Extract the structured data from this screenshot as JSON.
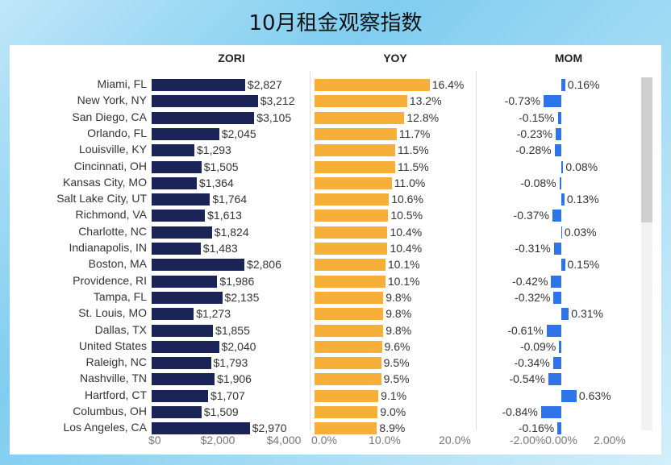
{
  "title": "10月租金观察指数",
  "chart_data": {
    "type": "bar",
    "categories": [
      "Miami, FL",
      "New York, NY",
      "San Diego, CA",
      "Orlando, FL",
      "Louisville, KY",
      "Cincinnati, OH",
      "Kansas City, MO",
      "Salt Lake City, UT",
      "Richmond, VA",
      "Charlotte, NC",
      "Indianapolis, IN",
      "Boston, MA",
      "Providence, RI",
      "Tampa, FL",
      "St. Louis, MO",
      "Dallas, TX",
      "United States",
      "Raleigh, NC",
      "Nashville, TN",
      "Hartford, CT",
      "Columbus, OH",
      "Los Angeles, CA"
    ],
    "panels": [
      {
        "name": "ZORI",
        "color": "#1a2456",
        "xlim": [
          0,
          4000
        ],
        "ticks": [
          "$0",
          "$2,000",
          "$4,000"
        ],
        "tick_values": [
          0,
          2000,
          4000
        ],
        "values": [
          2827,
          3212,
          3105,
          2045,
          1293,
          1505,
          1364,
          1764,
          1613,
          1824,
          1483,
          2806,
          1986,
          2135,
          1273,
          1855,
          2040,
          1793,
          1906,
          1707,
          1509,
          2970
        ],
        "labels": [
          "$2,827",
          "$3,212",
          "$3,105",
          "$2,045",
          "$1,293",
          "$1,505",
          "$1,364",
          "$1,764",
          "$1,613",
          "$1,824",
          "$1,483",
          "$2,806",
          "$1,986",
          "$2,135",
          "$1,273",
          "$1,855",
          "$2,040",
          "$1,793",
          "$1,906",
          "$1,707",
          "$1,509",
          "$2,970"
        ]
      },
      {
        "name": "YOY",
        "color": "#f6b03a",
        "xlim": [
          0,
          20
        ],
        "ticks": [
          "0.0%",
          "10.0%",
          "20.0%"
        ],
        "tick_values": [
          0,
          10,
          20
        ],
        "values": [
          16.4,
          13.2,
          12.8,
          11.7,
          11.5,
          11.5,
          11.0,
          10.6,
          10.5,
          10.4,
          10.4,
          10.1,
          10.1,
          9.8,
          9.8,
          9.8,
          9.6,
          9.5,
          9.5,
          9.1,
          9.0,
          8.9
        ],
        "labels": [
          "16.4%",
          "13.2%",
          "12.8%",
          "11.7%",
          "11.5%",
          "11.5%",
          "11.0%",
          "10.6%",
          "10.5%",
          "10.4%",
          "10.4%",
          "10.1%",
          "10.1%",
          "9.8%",
          "9.8%",
          "9.8%",
          "9.6%",
          "9.5%",
          "9.5%",
          "9.1%",
          "9.0%",
          "8.9%"
        ]
      },
      {
        "name": "MOM",
        "color": "#2e74e8",
        "xlim": [
          -2,
          2
        ],
        "ticks": [
          "-2.00%",
          "0.00%",
          "2.00%"
        ],
        "tick_values": [
          -2,
          0,
          2
        ],
        "values": [
          0.16,
          -0.73,
          -0.15,
          -0.23,
          -0.28,
          0.08,
          -0.08,
          0.13,
          -0.37,
          0.03,
          -0.31,
          0.15,
          -0.42,
          -0.32,
          0.31,
          -0.61,
          -0.09,
          -0.34,
          -0.54,
          0.63,
          -0.84,
          -0.16
        ],
        "labels": [
          "0.16%",
          "-0.73%",
          "-0.15%",
          "-0.23%",
          "-0.28%",
          "0.08%",
          "-0.08%",
          "0.13%",
          "-0.37%",
          "0.03%",
          "-0.31%",
          "0.15%",
          "-0.42%",
          "-0.32%",
          "0.31%",
          "-0.61%",
          "-0.09%",
          "-0.34%",
          "-0.54%",
          "0.63%",
          "-0.84%",
          "-0.16%"
        ]
      }
    ]
  }
}
